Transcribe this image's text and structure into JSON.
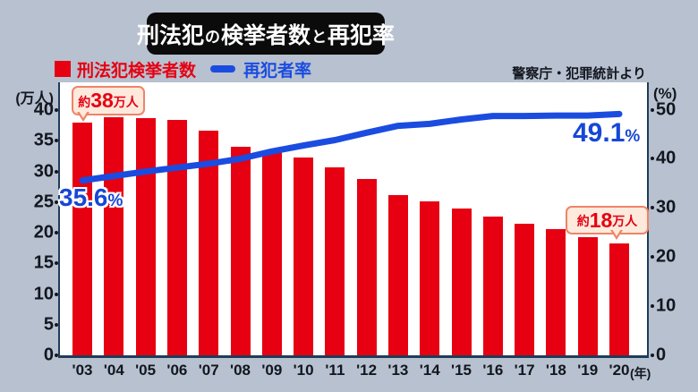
{
  "title": {
    "part1": "刑法犯",
    "small1": "の",
    "part2": "検挙者数",
    "small2": "と",
    "part3": "再犯率"
  },
  "legend": [
    {
      "label": "刑法犯検挙者数",
      "swatch": "red-square",
      "color": "#e60012"
    },
    {
      "label": "再犯者率",
      "swatch": "blue-line",
      "color": "#1b4ce0"
    }
  ],
  "source_note": "警察庁・犯罪統計より",
  "annotations": {
    "start_count": {
      "prefix": "約",
      "value": "38",
      "suffix": "万人"
    },
    "end_count": {
      "prefix": "約",
      "value": "18",
      "suffix": "万人"
    },
    "start_rate": {
      "value": "35.6",
      "unit": "%"
    },
    "end_rate": {
      "value": "49.1",
      "unit": "%"
    }
  },
  "axes": {
    "left_unit": "(万人)",
    "right_unit": "(%)",
    "x_suffix": "(年)"
  },
  "colors": {
    "background": "#b7c1cf",
    "bar": "#e60012",
    "line": "#1b4ce0",
    "rate_label": "#1747d6",
    "axis_border": "#1e3c59",
    "title_bg": "#0b0b0b",
    "callout_bg": "#fdeadd",
    "callout_border": "#ef8468"
  },
  "chart_data": {
    "type": "bar+line",
    "title": "刑法犯の検挙者数と再犯率",
    "categories": [
      "'03",
      "'04",
      "'05",
      "'06",
      "'07",
      "'08",
      "'09",
      "'10",
      "'11",
      "'12",
      "'13",
      "'14",
      "'15",
      "'16",
      "'17",
      "'18",
      "'19",
      "'20"
    ],
    "series": [
      {
        "name": "刑法犯検挙者数",
        "type": "bar",
        "axis": "left",
        "unit": "万人",
        "color": "#e60012",
        "values": [
          37.9,
          38.9,
          38.7,
          38.4,
          36.6,
          34.0,
          33.3,
          32.3,
          30.6,
          28.7,
          26.2,
          25.1,
          23.9,
          22.6,
          21.5,
          20.6,
          19.3,
          18.3
        ]
      },
      {
        "name": "再犯者率",
        "type": "line",
        "axis": "right",
        "unit": "%",
        "color": "#1b4ce0",
        "values": [
          35.6,
          36.5,
          37.4,
          38.2,
          39.0,
          40.0,
          41.5,
          42.7,
          43.8,
          45.3,
          46.7,
          47.1,
          48.0,
          48.7,
          48.7,
          48.8,
          48.8,
          49.1
        ]
      }
    ],
    "left_axis": {
      "label": "(万人)",
      "min": 0,
      "max": 40,
      "step": 5,
      "ticks": [
        40,
        35,
        30,
        25,
        20,
        15,
        10,
        5,
        0
      ]
    },
    "right_axis": {
      "label": "(%)",
      "min": 0,
      "max": 50,
      "step": 10,
      "ticks": [
        50,
        40,
        30,
        20,
        10,
        0
      ]
    },
    "legend_position": "top-left",
    "grid": false
  }
}
